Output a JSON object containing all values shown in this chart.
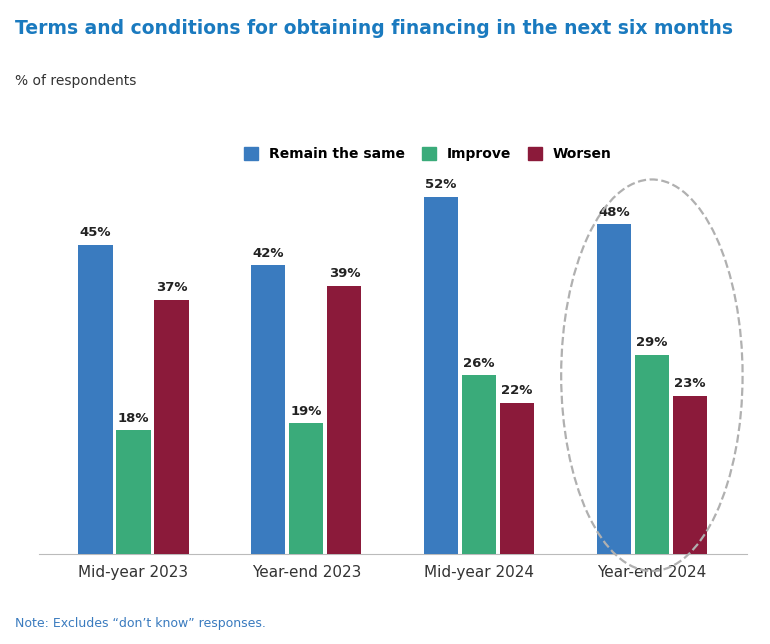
{
  "title": "Terms and conditions for obtaining financing in the next six months",
  "subtitle": "% of respondents",
  "note": "Note: Excludes “don’t know” responses.",
  "categories": [
    "Mid-year 2023",
    "Year-end 2023",
    "Mid-year 2024",
    "Year-end 2024"
  ],
  "series": {
    "Remain the same": [
      45,
      42,
      52,
      48
    ],
    "Improve": [
      18,
      19,
      26,
      29
    ],
    "Worsen": [
      37,
      39,
      22,
      23
    ]
  },
  "colors": {
    "Remain the same": "#3a7bbf",
    "Improve": "#3aab7a",
    "Worsen": "#8b1a3a"
  },
  "title_color": "#1a7abf",
  "subtitle_color": "#333333",
  "note_color": "#3a7bbf",
  "bar_width": 0.22,
  "ylim": [
    0,
    60
  ],
  "background_color": "#ffffff"
}
